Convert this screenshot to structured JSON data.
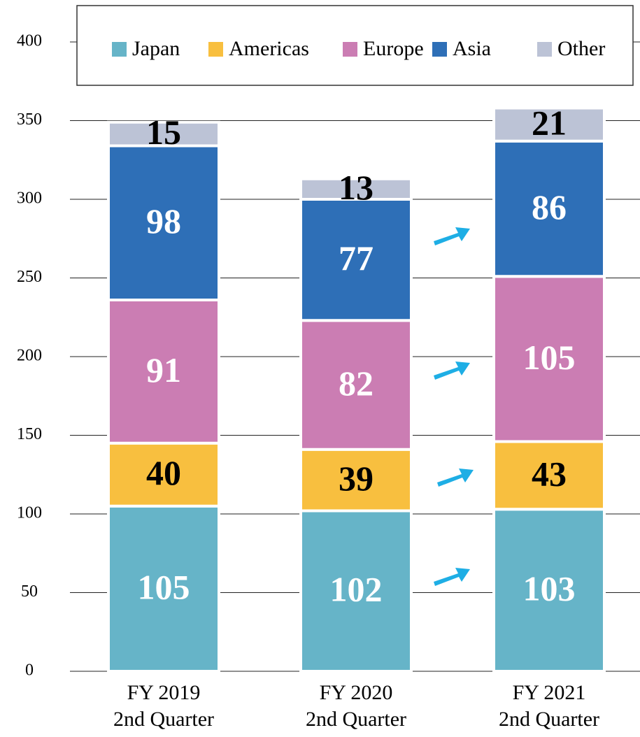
{
  "chart_data": {
    "type": "stacked_bar",
    "categories": [
      "FY 2019\n2nd Quarter",
      "FY 2020\n2nd Quarter",
      "FY 2021\n2nd Quarter"
    ],
    "series": [
      {
        "name": "Japan",
        "color": "#66b4c8",
        "label_color": "#ffffff",
        "values": [
          105,
          102,
          103
        ]
      },
      {
        "name": "Americas",
        "color": "#f8bf3f",
        "label_color": "#000000",
        "values": [
          40,
          39,
          43
        ]
      },
      {
        "name": "Europe",
        "color": "#cb7db3",
        "label_color": "#ffffff",
        "values": [
          91,
          82,
          105
        ]
      },
      {
        "name": "Asia",
        "color": "#2e6fb7",
        "label_color": "#ffffff",
        "values": [
          98,
          77,
          86
        ]
      },
      {
        "name": "Other",
        "color": "#bcc3d6",
        "label_color": "#000000",
        "values": [
          15,
          13,
          21
        ]
      }
    ],
    "ylim": [
      0,
      400
    ],
    "yticks": [
      0,
      50,
      100,
      150,
      200,
      250,
      300,
      350,
      400
    ],
    "grid": true,
    "legend": "top"
  }
}
